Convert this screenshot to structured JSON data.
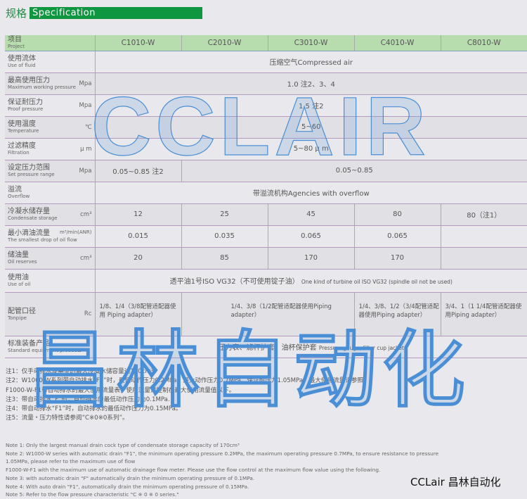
{
  "title": {
    "cn": "规格",
    "en": "Specification"
  },
  "header": {
    "label": {
      "cn": "项目",
      "en": "Project"
    },
    "models": [
      "C1010-W",
      "C2010-W",
      "C3010-W",
      "C4010-W",
      "C8010-W"
    ]
  },
  "rows": {
    "fluid": {
      "cn": "使用流体",
      "en": "Use of fluid",
      "unit": "",
      "value": "压缩空气Compressed air"
    },
    "max_pressure": {
      "cn": "最高使用压力",
      "en": "Maximum working pressure",
      "unit": "Mpa",
      "value": "1.0  注2、3、4"
    },
    "proof": {
      "cn": "保证耐压力",
      "en": "Proof pressure",
      "unit": "Mpa",
      "value": "1.5  注2"
    },
    "temp": {
      "cn": "使用温度",
      "en": "Temperature",
      "unit": "℃",
      "value": "5~60"
    },
    "filtration": {
      "cn": "过滤精度",
      "en": "Filtration",
      "unit": "μ m",
      "value": "5~80 μ m"
    },
    "set_pressure": {
      "cn": "设定压力范围",
      "en": "Set pressure range",
      "unit": "Mpa",
      "values": [
        "0.05~0.85  注2",
        "0.05~0.85"
      ]
    },
    "overflow": {
      "cn": "溢流",
      "en": "Overflow",
      "unit": "",
      "value": "带溢流机构Agencies with overflow"
    },
    "condensate": {
      "cn": "冷凝水储存量",
      "en": "Condensate storage",
      "unit": "cm³",
      "values": [
        "12",
        "25",
        "45",
        "80",
        "80（注1）"
      ]
    },
    "oil_flow": {
      "cn": "最小滴油流量",
      "en": "The smallest drop of oil flow",
      "unit": "m³/min(ANR)",
      "values": [
        "0.015",
        "0.035",
        "0.065",
        "0.065"
      ]
    },
    "oil_reserves": {
      "cn": "储油量",
      "en": "Oil reserves",
      "unit": "cm³",
      "values": [
        "20",
        "85",
        "170",
        "170"
      ]
    },
    "oil": {
      "cn": "使用油",
      "en": "Use of oil",
      "unit": "",
      "value": "透平油1号ISO VG32（不可使用锭子油）",
      "value_en": "One kind of turbine oil ISO VG32 (spindle oil not be used)"
    },
    "piping": {
      "cn": "配管口径",
      "en": "Tonpipe",
      "unit": "Rc",
      "values": [
        "1/8、1/4（3/8配管适配器使用 Piping adapter）",
        "1/4、3/8（1/2配管适配器使用Piping adapter）",
        "1/4、3/8、1/2（3/4配管适配器使用Piping adapter）",
        "3/4、1（1 1/4配管适配器使用Piping adapter）"
      ]
    },
    "standard": {
      "cn": "标准装备产品",
      "en": "Standard equipment products",
      "unit": "",
      "value": "压力表、滤杯护套、油杯保护套",
      "value_en": "Pressure gauge, filter cup jacket"
    }
  },
  "notes_cn": [
    "注1：仅手动排水旋塞型的最大冷凝水储容量达170cm³",
    "注2：W1000-W系列带自动排水“F1”时，最低动作压力0.2MPa、最大动作压力0.7MPa、保证耐压力1.05MPa、最大使用流量请参照",
    "F1000-W-F1带自动排水的最大使用流量表，使用流量请控制在最大使用流量值以下。",
    "注3：带自动排水“F”时，自动排水的最低动作压力为0.1MPa.",
    "注4：带自动排水“F1”时，自动排水的最低动作压力为0.15MPa。",
    "注5：流量・压力特性请参阅“C※0※0系列”。"
  ],
  "notes_en": [
    "Note 1: Only the largest manual drain cock type of condensate storage capacity of 170cm³",
    "Note 2: W1000-W series with automatic drain \"F1\", the minimum operating pressure 0.2MPa, the maximum operating pressure 0.7MPa, to ensure resistance to pressure",
    "1.05MPa, please refer to the maximum use of flow",
    "F1000-W-F1 with the maximum use of automatic drainage flow meter. Please use the flow control at the maximum flow value using the following.",
    "Note 3: with automatic drain \"F\" automatically drain the minimum operating pressure of 0.1MPa.",
    "Note 4: With auto drain \"F1\", automatically drain the minimum operating pressure of 0.15MPa.",
    "Note 5: Refer to the flow pressure characteristic \"C ※ 0 ※ 0 series.\""
  ],
  "brand": "CCLair 昌林自动化",
  "watermark": {
    "top": "CCLAIR",
    "bottom": "昌林自动化"
  },
  "colors": {
    "accent": "#0f9641",
    "header_bg": "#b7dcae",
    "watermark": "#4a8fd6"
  }
}
